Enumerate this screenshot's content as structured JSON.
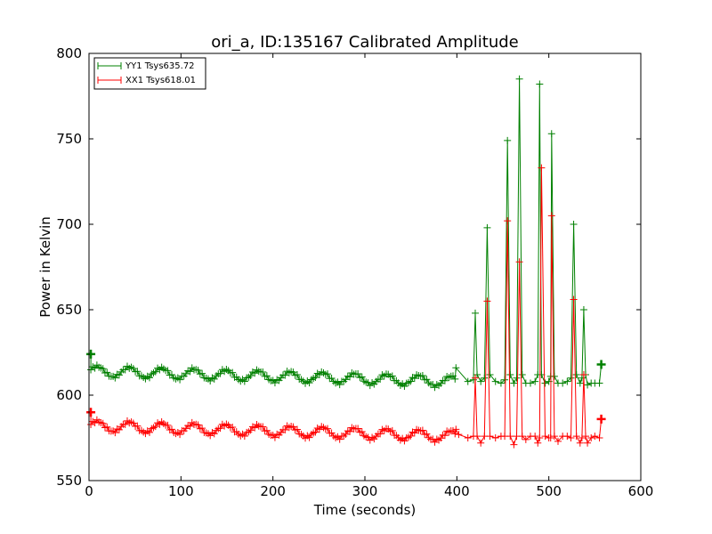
{
  "chart_data": {
    "type": "line",
    "title": "ori_a, ID:135167 Calibrated Amplitude",
    "xlabel": "Time (seconds)",
    "ylabel": "Power in Kelvin",
    "xlim": [
      0,
      600
    ],
    "ylim": [
      550,
      800
    ],
    "xticks": [
      0,
      100,
      200,
      300,
      400,
      500,
      600
    ],
    "yticks": [
      550,
      600,
      650,
      700,
      750,
      800
    ],
    "grid": false,
    "legend_position": "top-left",
    "marker": "+",
    "series": [
      {
        "name": "YY1 Tsys635.72",
        "color": "#008000",
        "baseline": {
          "x_start": 0,
          "x_end": 398,
          "center_start": 614,
          "center_end": 608,
          "ripple_amplitude": 3,
          "ripple_period": 35
        },
        "x": [
          2,
          399,
          412,
          418,
          420,
          422,
          426,
          430,
          433,
          436,
          442,
          448,
          452,
          455,
          458,
          462,
          465,
          468,
          471,
          475,
          480,
          485,
          488,
          490,
          492,
          496,
          500,
          502,
          503,
          506,
          510,
          515,
          520,
          524,
          527,
          530,
          534,
          536,
          538,
          540,
          542,
          546,
          550,
          555,
          557
        ],
        "y": [
          624,
          616,
          608,
          609,
          648,
          612,
          608,
          610,
          698,
          612,
          608,
          607,
          609,
          749,
          612,
          607,
          610,
          785,
          612,
          607,
          607,
          608,
          612,
          782,
          612,
          607,
          608,
          611,
          753,
          611,
          607,
          607,
          608,
          610,
          700,
          612,
          607,
          610,
          650,
          612,
          606,
          607,
          607,
          607,
          618
        ]
      },
      {
        "name": "XX1 Tsys618.01",
        "color": "#ff0000",
        "baseline": {
          "x_start": 0,
          "x_end": 398,
          "center_start": 582,
          "center_end": 576,
          "ripple_amplitude": 3,
          "ripple_period": 35
        },
        "x": [
          2,
          399,
          402,
          412,
          418,
          420,
          422,
          426,
          430,
          433,
          436,
          442,
          448,
          452,
          455,
          458,
          462,
          465,
          468,
          471,
          475,
          480,
          485,
          488,
          490,
          492,
          496,
          500,
          502,
          503,
          506,
          510,
          515,
          520,
          524,
          527,
          530,
          534,
          536,
          538,
          540,
          542,
          546,
          550,
          555,
          557
        ],
        "y": [
          590,
          580,
          577,
          575,
          576,
          610,
          576,
          572,
          576,
          655,
          576,
          575,
          576,
          576,
          702,
          576,
          571,
          576,
          678,
          576,
          574,
          576,
          576,
          572,
          575,
          733,
          576,
          575,
          575,
          705,
          576,
          573,
          576,
          576,
          575,
          656,
          576,
          572,
          575,
          612,
          576,
          572,
          575,
          576,
          575,
          586
        ]
      }
    ]
  }
}
